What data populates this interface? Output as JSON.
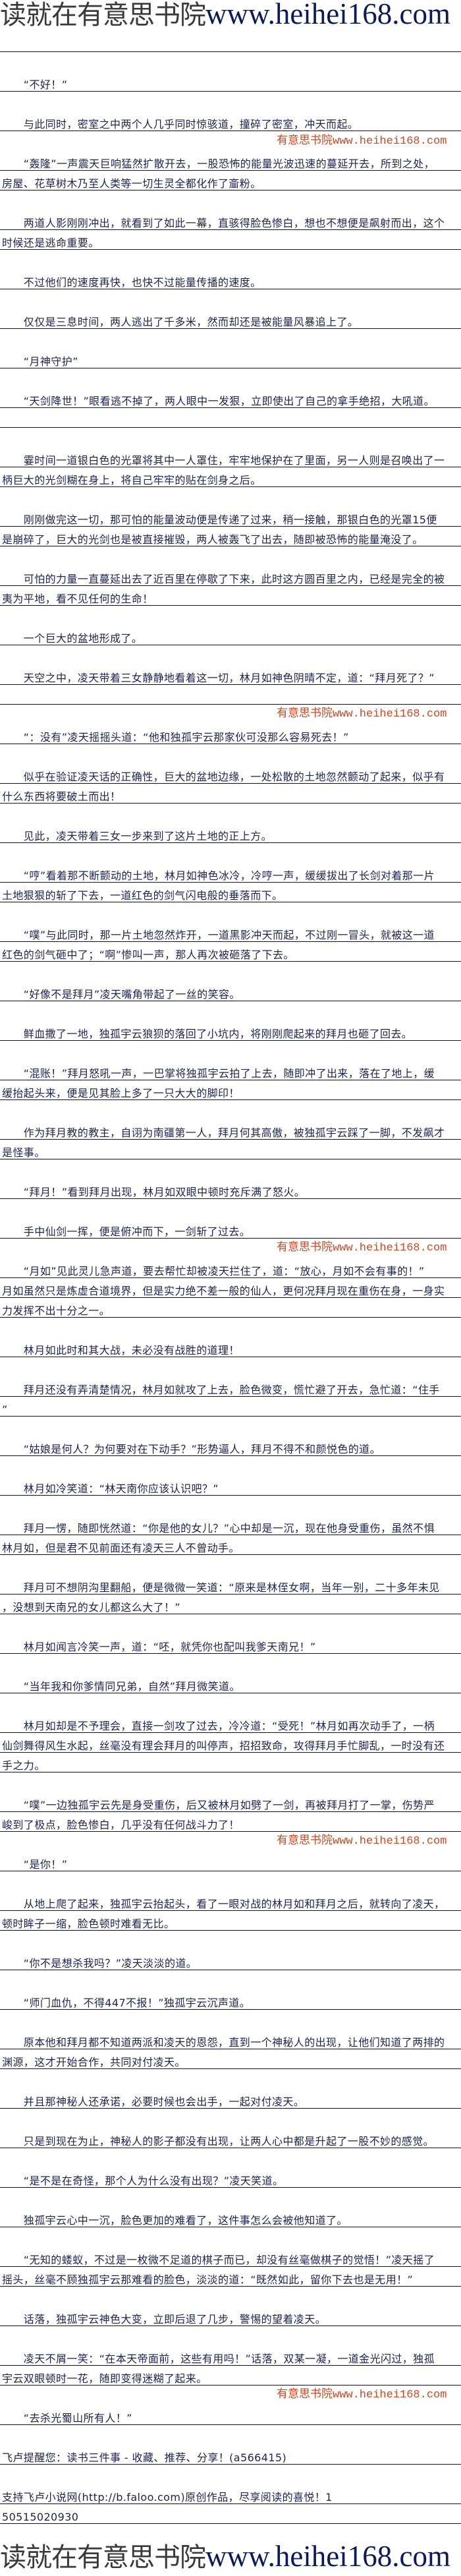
{
  "banner": {
    "site_name": "读就在有意思书院",
    "url": "www.heihei168.com"
  },
  "watermark_text": "有意思书院www.heihei168.com",
  "paragraphs": [
    [
      ""
    ],
    [
      "　　“不好！”"
    ],
    [
      "　　与此同时，密室之中两个人几乎同时惊骇道，撞碎了密室，冲天而起。"
    ],
    [
      "　　“轰隆”一声震天巨响猛然扩散开去，一股恐怖的能量光波迅速的蔓延开去，所到之处，",
      "房屋、花草树木乃至人类等一切生灵全都化作了齑粉。"
    ],
    [
      "　　两道人影刚刚冲出，就看到了如此一幕，直骇得脸色惨白，想也不想便是飙射而出，这个",
      "时候还是逃命重要。"
    ],
    [
      "　　不过他们的速度再快，也快不过能量传播的速度。"
    ],
    [
      "　　仅仅是三息时间，两人逃出了千多米，然而却还是被能量风暴追上了。"
    ],
    [
      "　　“月神守护”"
    ],
    [
      "　　“天剑降世！”眼看逃不掉了，两人眼中一发狠，立即使出了自己的拿手绝招，大吼道。",
      ""
    ],
    [
      "　　霎时间一道银白色的光罩将其中一人罩住，牢牢地保护在了里面，另一人则是召唤出了一",
      "柄巨大的光剑糊在身上，将自己牢牢的贴在剑身之后。"
    ],
    [
      "　　刚刚做完这一切，那可怕的能量波动便是传递了过来，稍一接触，那银白色的光罩15便",
      "是崩碎了，巨大的光剑也是被直接摧毁，两人被轰飞了出去，随即被恐怖的能量淹没了。"
    ],
    [
      "　　可怕的力量一直蔓延出去了近百里在停歇了下来，此时这方圆百里之内，已经是完全的被",
      "夷为平地，看不见任何的生命！"
    ],
    [
      "　　一个巨大的盆地形成了。"
    ],
    [
      "　　天空之中，凌天带着三女静静地看着这一切，林月如神色阴晴不定，道：“拜月死了？”",
      ""
    ],
    [
      "　　“：没有”凌天摇摇头道：“他和独孤宇云那家伙可没那么容易死去！”"
    ],
    [
      "　　似乎在验证凌天话的正确性，巨大的盆地边缘，一处松散的土地忽然颤动了起来，似乎有",
      "什么东西将要破土而出！"
    ],
    [
      "　　见此，凌天带着三女一步来到了这片土地的正上方。"
    ],
    [
      "　　“哼”看着那不断颤动的土地，林月如神色冰冷，冷哼一声，缓缓拔出了长剑对着那一片",
      "土地狠狠的斩了下去，一道红色的剑气闪电般的垂落而下。"
    ],
    [
      "　　“噗”与此同时，那一片土地忽然炸开，一道黑影冲天而起，不过刚一冒头，就被这一道",
      "红色的剑气砸中了；“啊”惨叫一声，那人再次被砸落了下去。"
    ],
    [
      "　　“好像不是拜月”凌天嘴角带起了一丝的笑容。"
    ],
    [
      "　　鲜血撒了一地，独孤宇云狼狈的落回了小坑内，将刚刚爬起来的拜月也砸了回去。"
    ],
    [
      "　　“混账！”拜月怒吼一声，一巴掌将独孤宇云拍了上去，随即冲了出来，落在了地上，缓",
      "缓抬起头来，便是见其脸上多了一只大大的脚印！"
    ],
    [
      "　　作为拜月教的教主，自诩为南疆第一人，拜月何其高傲，被独孤宇云踩了一脚，不发飙才",
      "是怪事。"
    ],
    [
      "　　“拜月！”看到拜月出现，林月如双眼中顿时充斥满了怒火。"
    ],
    [
      "　　手中仙剑一挥，便是俯冲而下，一剑斩了过去。"
    ],
    [
      "　　“月如”见此灵儿急声道，要去帮忙却被凌天拦住了，道：“放心，月如不会有事的！”",
      "月如虽然只是炼虚合道境界，但是实力绝不差一般的仙人，更何况拜月现在重伤在身，一身实",
      "力发挥不出十分之一。"
    ],
    [
      "　　林月如此时和其大战，未必没有战胜的道理！"
    ],
    [
      "　　拜月还没有弄清楚情况，林月如就攻了上去，脸色微变，慌忙避了开去，急忙道：“住手",
      "”"
    ],
    [
      "　　“姑娘是何人？为何要对在下动手？”形势逼人，拜月不得不和颜悦色的道。"
    ],
    [
      "　　林月如冷笑道：“林天南你应该认识吧？”"
    ],
    [
      "　　拜月一愣，随即恍然道：“你是他的女儿？”心中却是一沉，现在他身受重伤，虽然不惧",
      "林月如，但是君不见前面还有凌天三人不曾动手。"
    ],
    [
      "　　拜月可不想阴沟里翻船，便是微微一笑道：“原来是林侄女啊，当年一别，二十多年未见",
      "，没想到天南兄的女儿都这么大了！”"
    ],
    [
      "　　林月如闻言冷笑一声，道：“呸，就凭你也配叫我爹天南兄！”"
    ],
    [
      "　　“当年我和你爹情同兄弟，自然”拜月微笑道。"
    ],
    [
      "　　林月如却是不予理会，直接一剑攻了过去，冷冷道：“受死！”林月如再次动手了，一柄",
      "仙剑舞得风生水起，丝毫没有理会拜月的叫停声，招招致命，攻得拜月手忙脚乱，一时没有还",
      "手之力。"
    ],
    [
      "　　“噗”一边独孤宇云先是身受重伤，后又被林月如劈了一剑，再被拜月打了一掌，伤势严",
      "峻到了极点，脸色惨白，几乎没有任何战斗力了！"
    ],
    [
      "　　“是你！”"
    ],
    [
      "　　从地上爬了起来，独孤宇云抬起头，看了一眼对战的林月如和拜月之后，就转向了凌天，",
      "顿时眸子一缩，脸色顿时难看无比。"
    ],
    [
      "　　“你不是想杀我吗？”凌天淡淡的道。"
    ],
    [
      "　　“师门血仇，不得447不报！”独孤宇云沉声道。"
    ],
    [
      "　　原本他和拜月都不知道两派和凌天的恩怨，直到一个神秘人的出现，让他们知道了两排的",
      "渊源，这才开始合作，共同对付凌天。"
    ],
    [
      "　　并且那神秘人还承诺，必要时候也会出手，一起对付凌天。"
    ],
    [
      "　　只是到现在为止，神秘人的影子都没有出现，让两人心中都是升起了一股不妙的感觉。"
    ],
    [
      "　　“是不是在奇怪，那个人为什么没有出现？”凌天笑道。"
    ],
    [
      "　　独孤宇云心中一沉，脸色更加的难看了，这件事怎么会被他知道了。"
    ],
    [
      "　　“无知的蝼蚁，不过是一枚微不足道的棋子而已，却没有丝毫做棋子的觉悟！”凌天摇了",
      "摇头，丝毫不顾独孤宇云那难看的脸色，淡淡的道：“既然如此，留你下去也是无用！”"
    ],
    [
      "　　话落，独孤宇云神色大变，立即后退了几步，警惕的望着凌天。"
    ],
    [
      "　　凌天不屑一笑：“在本天帝面前，这些有用吗！”话落，双某一凝，一道金光闪过，独孤",
      "宇云双眼顿时一花，随即变得迷糊了起来。"
    ],
    [
      "　　“去杀光蜀山所有人！”"
    ],
    [
      "飞卢提醒您：读书三件事 - 收藏、推荐、分享！(a566415)"
    ],
    [
      "支持飞卢小说网(http://b.faloo.com)原创作品，尽享阅读的喜悦！1",
      "50515020930"
    ]
  ]
}
